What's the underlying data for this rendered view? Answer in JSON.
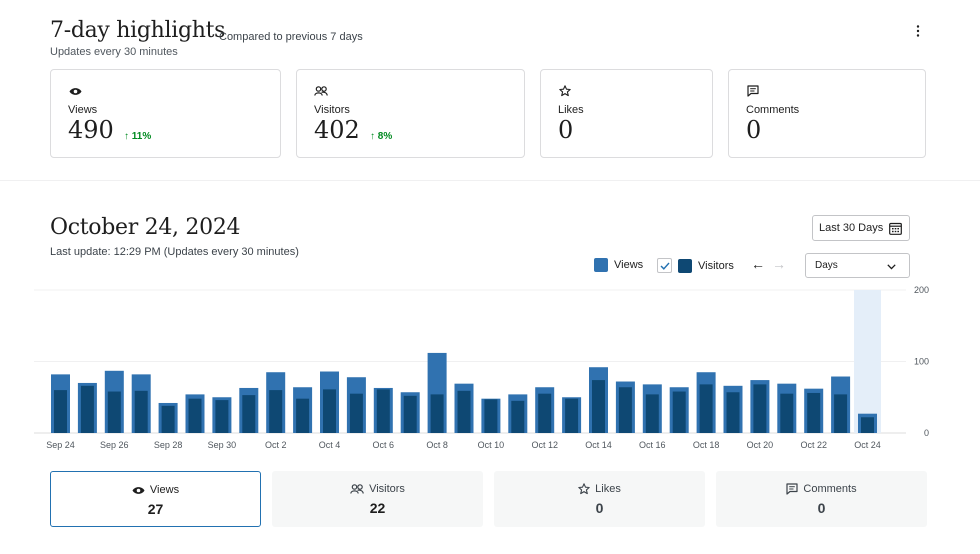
{
  "highlights": {
    "title": "7-day highlights",
    "compare": "Compared to previous 7 days",
    "updates": "Updates every 30 minutes",
    "more_icon": "more-vertical-icon",
    "cards": [
      {
        "label": "Views",
        "value": "490",
        "delta": "11%",
        "icon": "eye-icon"
      },
      {
        "label": "Visitors",
        "value": "402",
        "delta": "8%",
        "icon": "people-icon"
      },
      {
        "label": "Likes",
        "value": "0",
        "delta": "",
        "icon": "star-icon"
      },
      {
        "label": "Comments",
        "value": "0",
        "delta": "",
        "icon": "comment-icon"
      }
    ]
  },
  "period": {
    "date_title": "October 24, 2024",
    "last_update": "Last update: 12:29 PM (Updates every 30 minutes)",
    "range_label": "Last 30 Days",
    "legend_views": "Views",
    "legend_visitors": "Visitors",
    "interval_value": "Days"
  },
  "colors": {
    "views": "#3072b0",
    "visitors": "#0e4873",
    "highlight": "#e4eef9",
    "positive": "#008a20",
    "accent": "#2271b1"
  },
  "chart_data": {
    "type": "bar",
    "x": [
      "Sep 24",
      "Sep 25",
      "Sep 26",
      "Sep 27",
      "Sep 28",
      "Sep 29",
      "Sep 30",
      "Oct 1",
      "Oct 2",
      "Oct 3",
      "Oct 4",
      "Oct 5",
      "Oct 6",
      "Oct 7",
      "Oct 8",
      "Oct 9",
      "Oct 10",
      "Oct 11",
      "Oct 12",
      "Oct 13",
      "Oct 14",
      "Oct 15",
      "Oct 16",
      "Oct 17",
      "Oct 18",
      "Oct 19",
      "Oct 20",
      "Oct 21",
      "Oct 22",
      "Oct 23",
      "Oct 24"
    ],
    "tick_labels": [
      "Sep 24",
      "Sep 26",
      "Sep 28",
      "Sep 30",
      "Oct 2",
      "Oct 4",
      "Oct 6",
      "Oct 8",
      "Oct 10",
      "Oct 12",
      "Oct 14",
      "Oct 16",
      "Oct 18",
      "Oct 20",
      "Oct 22",
      "Oct 24"
    ],
    "series": [
      {
        "name": "Views",
        "values": [
          82,
          70,
          87,
          82,
          42,
          54,
          50,
          63,
          85,
          64,
          86,
          78,
          63,
          57,
          112,
          69,
          48,
          54,
          64,
          50,
          92,
          72,
          68,
          64,
          85,
          66,
          74,
          69,
          62,
          79,
          27
        ]
      },
      {
        "name": "Visitors",
        "values": [
          60,
          66,
          58,
          59,
          38,
          48,
          46,
          53,
          60,
          48,
          61,
          55,
          61,
          52,
          54,
          59,
          47,
          45,
          55,
          48,
          74,
          64,
          54,
          58,
          68,
          57,
          68,
          55,
          56,
          54,
          22
        ]
      }
    ],
    "ylim": [
      0,
      200
    ],
    "yticks": [
      "200",
      "100",
      "0"
    ],
    "highlighted": "Oct 24",
    "grid": true
  },
  "tabs": [
    {
      "label": "Views",
      "value": "27",
      "icon": "eye-icon"
    },
    {
      "label": "Visitors",
      "value": "22",
      "icon": "people-icon"
    },
    {
      "label": "Likes",
      "value": "0",
      "icon": "star-icon"
    },
    {
      "label": "Comments",
      "value": "0",
      "icon": "comment-icon"
    }
  ]
}
